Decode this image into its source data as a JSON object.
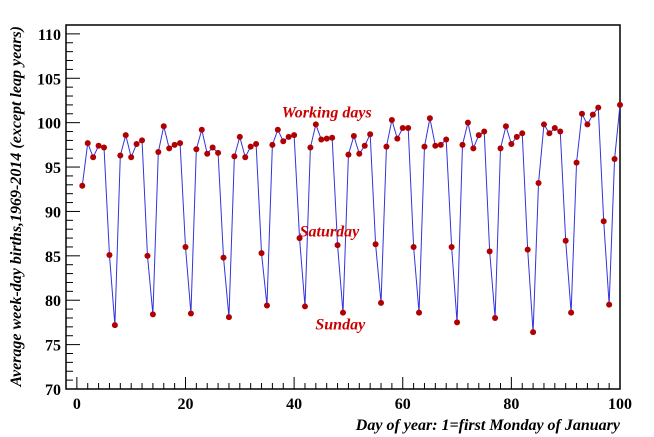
{
  "chart_data": {
    "type": "line",
    "xlabel": "Day of year: 1=first Monday of January",
    "ylabel": "Average week-day births,1969-2014 (except leap years)",
    "xlim": [
      -2,
      100
    ],
    "ylim": [
      70,
      111
    ],
    "x_ticks": [
      0,
      20,
      40,
      60,
      80,
      100
    ],
    "y_ticks": [
      70,
      75,
      80,
      85,
      90,
      95,
      100,
      105,
      110
    ],
    "line_color": "#3333dd",
    "marker_color": "#b00000",
    "annotation_color": "#cc0000",
    "annotations": [
      {
        "text": "Working days",
        "x": 46,
        "y": 100.6
      },
      {
        "text": "Saturday",
        "x": 46.5,
        "y": 87.2
      },
      {
        "text": "Sunday",
        "x": 48.5,
        "y": 76.7
      }
    ],
    "series": [
      {
        "name": "Average week-day births",
        "x": [
          1,
          2,
          3,
          4,
          5,
          6,
          7,
          8,
          9,
          10,
          11,
          12,
          13,
          14,
          15,
          16,
          17,
          18,
          19,
          20,
          21,
          22,
          23,
          24,
          25,
          26,
          27,
          28,
          29,
          30,
          31,
          32,
          33,
          34,
          35,
          36,
          37,
          38,
          39,
          40,
          41,
          42,
          43,
          44,
          45,
          46,
          47,
          48,
          49,
          50,
          51,
          52,
          53,
          54,
          55,
          56,
          57,
          58,
          59,
          60,
          61,
          62,
          63,
          64,
          65,
          66,
          67,
          68,
          69,
          70,
          71,
          72,
          73,
          74,
          75,
          76,
          77,
          78,
          79,
          80,
          81,
          82,
          83,
          84,
          85,
          86,
          87,
          88,
          89,
          90,
          91,
          92,
          93,
          94,
          95,
          96,
          97,
          98,
          99,
          100
        ],
        "y": [
          92.9,
          97.7,
          96.1,
          97.4,
          97.2,
          85.1,
          77.2,
          96.3,
          98.6,
          96.1,
          97.6,
          98.0,
          85.0,
          78.4,
          96.7,
          99.6,
          97.1,
          97.5,
          97.7,
          86.0,
          78.5,
          97.0,
          99.2,
          96.5,
          97.2,
          96.6,
          84.8,
          78.1,
          96.2,
          98.4,
          96.1,
          97.3,
          97.6,
          85.3,
          79.4,
          97.5,
          99.2,
          97.9,
          98.4,
          98.6,
          87.0,
          79.3,
          97.2,
          99.8,
          98.1,
          98.2,
          98.3,
          86.2,
          78.6,
          96.4,
          98.5,
          96.5,
          97.4,
          98.7,
          86.3,
          79.7,
          97.3,
          100.3,
          98.2,
          99.4,
          99.4,
          86.0,
          78.6,
          97.3,
          100.5,
          97.4,
          97.5,
          98.1,
          86.0,
          77.5,
          97.5,
          100.0,
          97.1,
          98.6,
          99.0,
          85.5,
          78.0,
          97.1,
          99.6,
          97.6,
          98.4,
          98.8,
          85.7,
          76.4,
          93.2,
          99.8,
          98.8,
          99.4,
          99.0,
          86.7,
          78.6,
          95.5,
          101.0,
          99.8,
          100.9,
          101.7,
          88.9,
          79.5,
          95.9,
          102.0
        ]
      }
    ]
  }
}
